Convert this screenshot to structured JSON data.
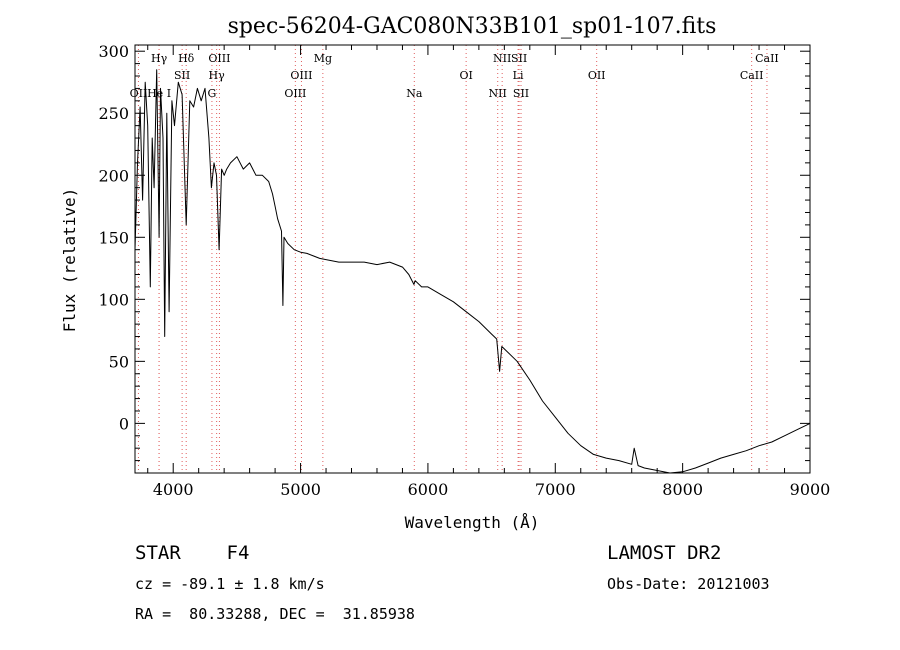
{
  "chart_data": {
    "type": "line",
    "title": "spec-56204-GAC080N33B101_sp01-107.fits",
    "xlabel": "Wavelength (Å)",
    "ylabel": "Flux (relative)",
    "xlim": [
      3700,
      9000
    ],
    "ylim": [
      -40,
      305
    ],
    "xticks": [
      4000,
      5000,
      6000,
      7000,
      8000,
      9000
    ],
    "yticks": [
      0,
      50,
      100,
      150,
      200,
      250,
      300
    ],
    "grid": false,
    "series": [
      {
        "x": [
          3700,
          3720,
          3740,
          3760,
          3780,
          3800,
          3820,
          3835,
          3850,
          3870,
          3889,
          3900,
          3920,
          3933,
          3950,
          3968,
          3990,
          4010,
          4040,
          4070,
          4102,
          4130,
          4160,
          4190,
          4220,
          4250,
          4280,
          4300,
          4320,
          4340,
          4360,
          4380,
          4400,
          4420,
          4450,
          4500,
          4550,
          4600,
          4650,
          4700,
          4750,
          4780,
          4800,
          4820,
          4850,
          4861,
          4870,
          4900,
          4950,
          5000,
          5050,
          5100,
          5150,
          5200,
          5300,
          5400,
          5500,
          5600,
          5700,
          5800,
          5850,
          5890,
          5900,
          5950,
          6000,
          6100,
          6200,
          6300,
          6400,
          6500,
          6540,
          6563,
          6580,
          6600,
          6700,
          6800,
          6900,
          7000,
          7100,
          7200,
          7300,
          7400,
          7500,
          7600,
          7620,
          7650,
          7700,
          7800,
          7900,
          8000,
          8100,
          8200,
          8300,
          8400,
          8500,
          8600,
          8700,
          8800,
          8900,
          9000
        ],
        "y": [
          140,
          210,
          255,
          180,
          275,
          240,
          110,
          230,
          190,
          285,
          150,
          270,
          230,
          70,
          250,
          90,
          260,
          240,
          275,
          265,
          160,
          260,
          255,
          270,
          260,
          270,
          230,
          190,
          210,
          200,
          140,
          205,
          200,
          205,
          210,
          215,
          205,
          210,
          200,
          200,
          195,
          185,
          175,
          165,
          155,
          95,
          150,
          145,
          140,
          138,
          137,
          135,
          133,
          132,
          130,
          130,
          130,
          128,
          130,
          126,
          120,
          112,
          115,
          110,
          110,
          104,
          98,
          90,
          82,
          72,
          68,
          42,
          62,
          60,
          50,
          35,
          18,
          5,
          -8,
          -18,
          -25,
          -28,
          -30,
          -33,
          -20,
          -34,
          -36,
          -38,
          -40,
          -39,
          -36,
          -32,
          -28,
          -25,
          -22,
          -18,
          -15,
          -10,
          -5,
          0
        ]
      }
    ],
    "lines": [
      {
        "label": "OII",
        "wl": 3727,
        "row": 3
      },
      {
        "label": "Hγ",
        "wl": 3889,
        "row": 1
      },
      {
        "label": "He I",
        "wl": 3889,
        "row": 3
      },
      {
        "label": "Hδ",
        "wl": 4102,
        "row": 1
      },
      {
        "label": "SII",
        "wl": 4070,
        "row": 2
      },
      {
        "label": "OIII",
        "wl": 4363,
        "row": 1
      },
      {
        "label": "Hγ",
        "wl": 4341,
        "row": 2
      },
      {
        "label": "G",
        "wl": 4304,
        "row": 3
      },
      {
        "label": "Mg",
        "wl": 5175,
        "row": 1
      },
      {
        "label": "OIII",
        "wl": 5007,
        "row": 2
      },
      {
        "label": "OIII",
        "wl": 4959,
        "row": 3
      },
      {
        "label": "Na",
        "wl": 5893,
        "row": 3
      },
      {
        "label": "OI",
        "wl": 6300,
        "row": 2
      },
      {
        "label": "NII",
        "wl": 6583,
        "row": 1
      },
      {
        "label": "SII",
        "wl": 6716,
        "row": 1
      },
      {
        "label": "Li",
        "wl": 6708,
        "row": 2
      },
      {
        "label": "NII",
        "wl": 6548,
        "row": 3
      },
      {
        "label": "SII",
        "wl": 6731,
        "row": 3
      },
      {
        "label": "OII",
        "wl": 7325,
        "row": 2
      },
      {
        "label": "CaII",
        "wl": 8662,
        "row": 1
      },
      {
        "label": "CaII",
        "wl": 8542,
        "row": 2
      }
    ]
  },
  "info": {
    "class": "STAR",
    "subclass": "F4",
    "survey": "LAMOST DR2",
    "cz": "cz = -89.1 ± 1.8 km/s",
    "obsdate": "Obs-Date: 20121003",
    "radec": "RA =  80.33288, DEC =  31.85938"
  },
  "colors": {
    "line": "#000000",
    "marker": "#e06060"
  }
}
